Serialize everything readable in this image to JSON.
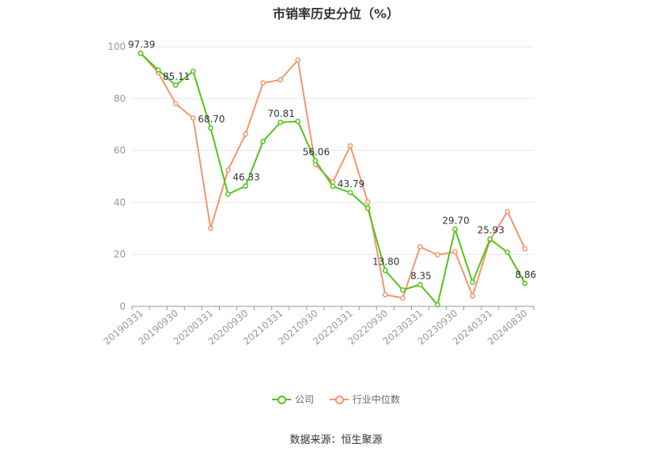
{
  "chart_data": {
    "type": "line",
    "title": "市销率历史分位（%）",
    "x": [
      "20190331",
      "20190630",
      "20190930",
      "20191231",
      "20200331",
      "20200630",
      "20200930",
      "20201231",
      "20210331",
      "20210630",
      "20210930",
      "20211231",
      "20220331",
      "20220630",
      "20220930",
      "20221231",
      "20230331",
      "20230630",
      "20230930",
      "20231231",
      "20240331",
      "20240630",
      "20240830"
    ],
    "x_tick_labels": [
      "20190331",
      "20190930",
      "20200331",
      "20200930",
      "20210331",
      "20210930",
      "20220331",
      "20220930",
      "20230331",
      "20230930",
      "20240331",
      "20240830"
    ],
    "ylim": [
      0,
      100
    ],
    "y_ticks": [
      0,
      20,
      40,
      60,
      80,
      100
    ],
    "grid": true,
    "legend": "bottom",
    "series": [
      {
        "name": "公司",
        "color": "#52c41a",
        "values": [
          97.39,
          91.0,
          85.11,
          90.5,
          68.7,
          43.2,
          46.33,
          63.5,
          70.81,
          71.2,
          56.06,
          46.2,
          43.79,
          37.8,
          13.8,
          6.3,
          8.35,
          0.6,
          29.7,
          9.3,
          25.93,
          20.8,
          8.86
        ],
        "labels": {
          "0": "97.39",
          "2": "85.11",
          "4": "68.70",
          "6": "46.33",
          "8": "70.81",
          "10": "56.06",
          "12": "43.79",
          "14": "13.80",
          "16": "8.35",
          "18": "29.70",
          "20": "25.93",
          "22": "8.86"
        }
      },
      {
        "name": "行业中位数",
        "color": "#f4956a",
        "values": [
          97.5,
          90.0,
          78.0,
          72.5,
          30.0,
          52.5,
          66.3,
          86.0,
          87.2,
          94.8,
          54.6,
          47.8,
          61.8,
          40.2,
          4.5,
          3.2,
          22.9,
          19.8,
          21.0,
          4.0,
          25.5,
          36.5,
          22.2
        ]
      }
    ]
  },
  "source_text": "数据来源：恒生聚源"
}
